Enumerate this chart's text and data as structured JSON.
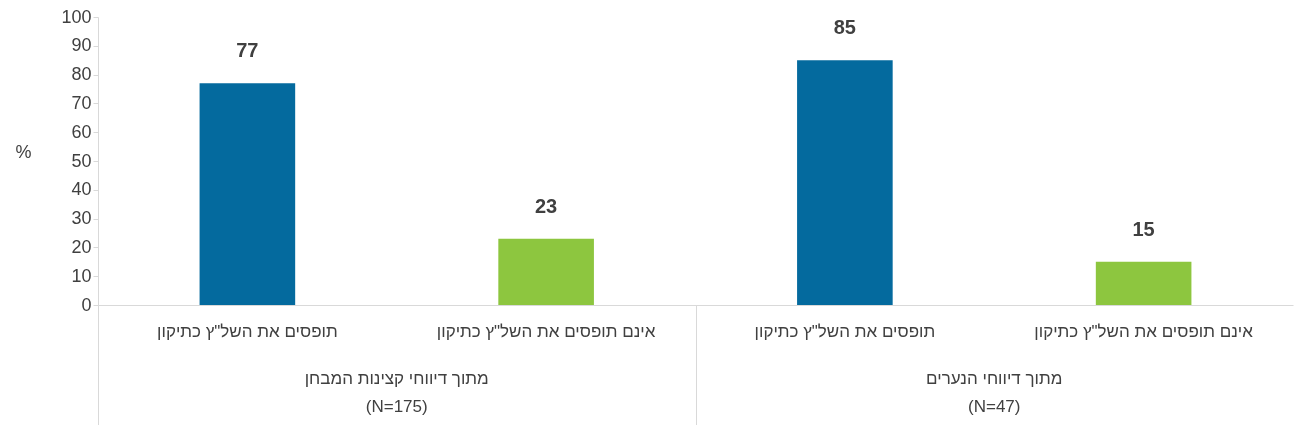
{
  "chart_data": {
    "type": "bar",
    "ylabel": "%",
    "categories": [
      "תופסים את השל\"ץ כתיקון",
      "אינם תופסים את השל\"ץ כתיקון",
      "תופסים את השל\"ץ כתיקון",
      "אינם תופסים את השל\"ץ כתיקון"
    ],
    "values": [
      77,
      23,
      85,
      15
    ],
    "colors": [
      "#046a9e",
      "#8dc63f",
      "#046a9e",
      "#8dc63f"
    ],
    "ylim": [
      0,
      100
    ],
    "yticks": [
      0,
      10,
      20,
      30,
      40,
      50,
      60,
      70,
      80,
      90,
      100
    ],
    "data_labels": true,
    "grid": false,
    "annotations": [
      "מתוך דיווחי קצינות המבחן\n(N=175)",
      "מתוך דיווחי הנערים\n(N=47)"
    ]
  }
}
